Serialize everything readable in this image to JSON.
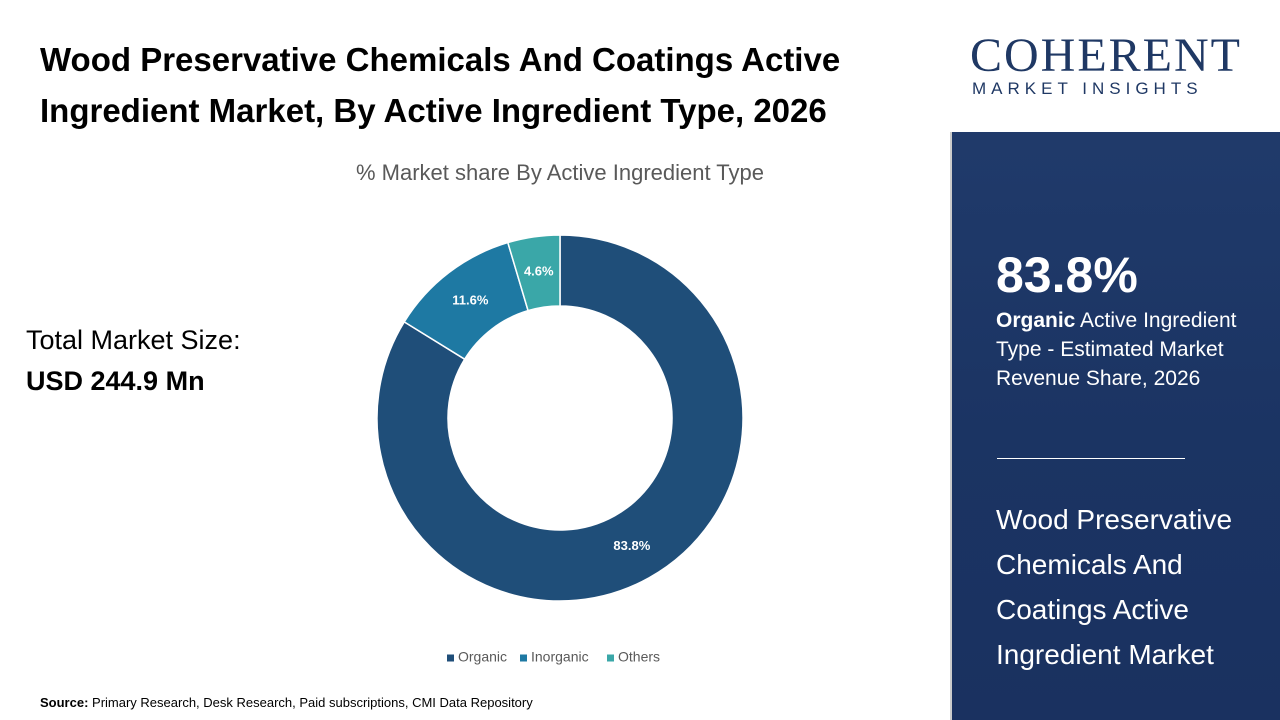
{
  "chart_data": {
    "type": "donut",
    "title": "Wood Preservative Chemicals And Coatings Active Ingredient Market, By Active Ingredient Type, 2026",
    "subtitle": "% Market share By Active Ingredient Type",
    "categories": [
      "Organic",
      "Inorganic",
      "Others"
    ],
    "values": [
      83.8,
      11.6,
      4.6
    ],
    "value_labels": [
      "83.8%",
      "11.6%",
      "4.6%"
    ],
    "colors": [
      "#1f4e79",
      "#1e79a3",
      "#3aa7a8"
    ],
    "legend": "bottom"
  },
  "market_size": {
    "label": "Total Market Size:",
    "value": "USD 244.9 Mn"
  },
  "source": {
    "label": "Source:",
    "text": "Primary Research, Desk Research, Paid subscriptions, CMI Data Repository"
  },
  "logo": {
    "name": "COHERENT",
    "tagline": "MARKET INSIGHTS"
  },
  "highlight": {
    "value": "83.8%",
    "segment": "Organic",
    "text": "Active Ingredient Type - Estimated Market Revenue Share, 2026"
  },
  "side_title": "Wood Preservative Chemicals And Coatings Active Ingredient Market"
}
